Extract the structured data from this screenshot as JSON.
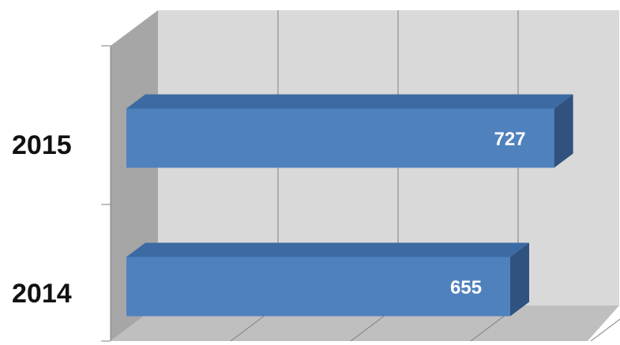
{
  "chart_data": {
    "type": "bar",
    "orientation": "horizontal",
    "three_d": true,
    "categories": [
      "2015",
      "2014"
    ],
    "values": [
      727,
      655
    ],
    "data_labels": [
      "727",
      "655"
    ],
    "title": "",
    "xlabel": "",
    "ylabel": "",
    "xlim": [
      0,
      800
    ],
    "x_gridlines": [
      200,
      400,
      600,
      800
    ],
    "grid": true,
    "legend": "none",
    "colors": {
      "bar_front": "#4f81bd",
      "bar_top": "#3c6aa3",
      "bar_side": "#2f527f",
      "back_wall": "#d9d9d9",
      "side_wall": "#a6a6a6",
      "floor": "#bfbfbf",
      "gridline": "#7f7f7f"
    }
  }
}
